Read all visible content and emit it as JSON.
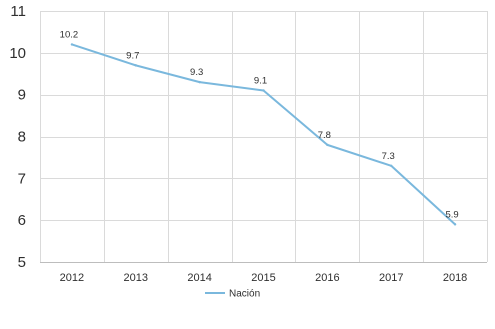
{
  "chart_data": {
    "type": "line",
    "title": "",
    "xlabel": "",
    "ylabel": "",
    "categories": [
      "2012",
      "2013",
      "2014",
      "2015",
      "2016",
      "2017",
      "2018"
    ],
    "series": [
      {
        "name": "Nación",
        "values": [
          10.2,
          9.7,
          9.3,
          9.1,
          7.8,
          7.3,
          5.9
        ],
        "color": "#7ab8dd"
      }
    ],
    "ylim": [
      5,
      11
    ],
    "yticks": [
      5,
      6,
      7,
      8,
      9,
      10,
      11
    ],
    "grid": true,
    "legend_position": "bottom",
    "data_labels": [
      "10.2",
      "9.7",
      "9.3",
      "9.1",
      "7.8",
      "7.3",
      "5.9"
    ]
  }
}
